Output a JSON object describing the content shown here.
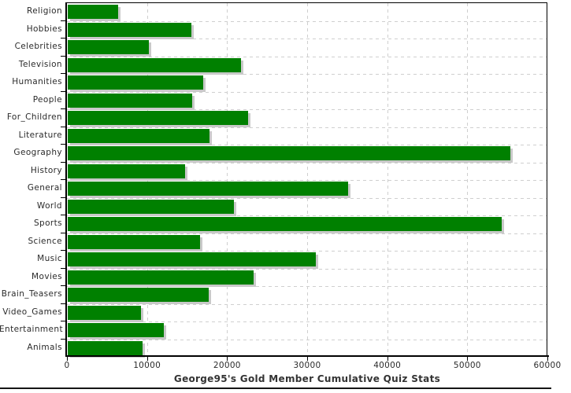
{
  "chart_data": {
    "type": "bar",
    "orientation": "horizontal",
    "title": "George95's Gold Member Cumulative Quiz Stats",
    "categories": [
      "Religion",
      "Hobbies",
      "Celebrities",
      "Television",
      "Humanities",
      "People",
      "For_Children",
      "Literature",
      "Geography",
      "History",
      "General",
      "World",
      "Sports",
      "Science",
      "Music",
      "Movies",
      "Brain_Teasers",
      "Video_Games",
      "Entertainment",
      "Animals"
    ],
    "values": [
      6300,
      15400,
      10100,
      21600,
      16900,
      15500,
      22500,
      17700,
      55300,
      14700,
      35000,
      20800,
      54200,
      16500,
      31000,
      23200,
      17600,
      9100,
      12000,
      9300
    ],
    "xlim": [
      0,
      60000
    ],
    "x_ticks": [
      0,
      10000,
      20000,
      30000,
      40000,
      50000,
      60000
    ],
    "x_tick_labels": [
      "0",
      "10000",
      "20000",
      "30000",
      "40000",
      "50000",
      "60000"
    ],
    "xlabel": "",
    "ylabel": "",
    "grid": true,
    "legend": "none",
    "bar_color": "#008000",
    "shadow_color": "#c9c9c9",
    "grid_color": "#cfcfcf",
    "axis_color": "#000000",
    "text_color": "#2b2b2b"
  }
}
